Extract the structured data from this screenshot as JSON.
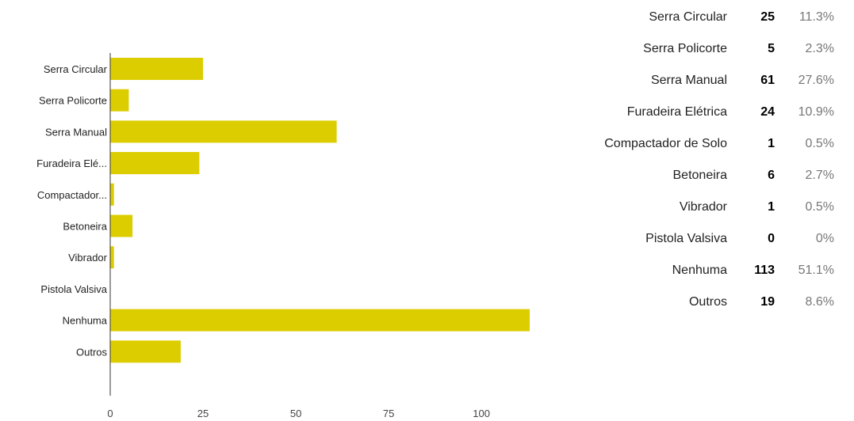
{
  "chart_data": {
    "type": "bar",
    "orientation": "horizontal",
    "categories": [
      "Serra Circular",
      "Serra Policorte",
      "Serra Manual",
      "Furadeira Elé...",
      "Compactador...",
      "Betoneira",
      "Vibrador",
      "Pistola Valsiva",
      "Nenhuma",
      "Outros"
    ],
    "values": [
      25,
      5,
      61,
      24,
      1,
      6,
      1,
      0,
      113,
      19
    ],
    "xlim": [
      0,
      113
    ],
    "xticks": [
      "0",
      "25",
      "50",
      "75",
      "100"
    ],
    "xtick_values": [
      0,
      25,
      50,
      75,
      100
    ],
    "bar_color": "#dccd00",
    "axis_color": "#333333",
    "grid": false,
    "legend": "none"
  },
  "summary": {
    "rows": [
      {
        "label": "Serra Circular",
        "count": "25",
        "percent": "11.3%"
      },
      {
        "label": "Serra Policorte",
        "count": "5",
        "percent": "2.3%"
      },
      {
        "label": "Serra Manual",
        "count": "61",
        "percent": "27.6%"
      },
      {
        "label": "Furadeira Elétrica",
        "count": "24",
        "percent": "10.9%"
      },
      {
        "label": "Compactador de Solo",
        "count": "1",
        "percent": "0.5%"
      },
      {
        "label": "Betoneira",
        "count": "6",
        "percent": "2.7%"
      },
      {
        "label": "Vibrador",
        "count": "1",
        "percent": "0.5%"
      },
      {
        "label": "Pistola Valsiva",
        "count": "0",
        "percent": "0%"
      },
      {
        "label": "Nenhuma",
        "count": "113",
        "percent": "51.1%"
      },
      {
        "label": "Outros",
        "count": "19",
        "percent": "8.6%"
      }
    ]
  }
}
